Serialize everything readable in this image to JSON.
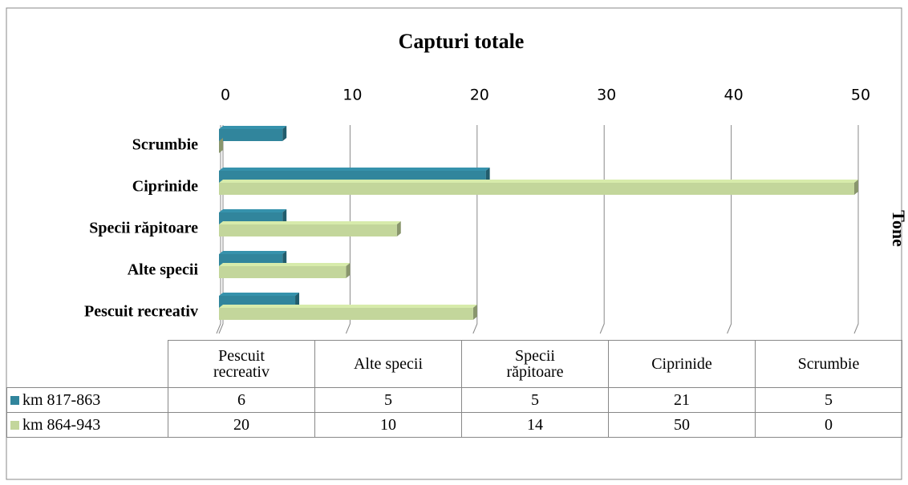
{
  "chart_data": {
    "type": "bar",
    "orientation": "horizontal",
    "title": "Capturi totale",
    "axis_label": "Tone",
    "categories": [
      "Pescuit recreativ",
      "Alte specii",
      "Specii răpitoare",
      "Ciprinide",
      "Scrumbie"
    ],
    "series": [
      {
        "name": "km 817-863",
        "color": "#31859c",
        "values": [
          6,
          5,
          5,
          21,
          5
        ]
      },
      {
        "name": "km 864-943",
        "color": "#c3d69b",
        "values": [
          20,
          10,
          14,
          50,
          0
        ]
      }
    ],
    "xlim": [
      0,
      50
    ],
    "xticks": [
      0,
      10,
      20,
      30,
      40,
      50
    ],
    "grid": true,
    "data_table": true
  }
}
